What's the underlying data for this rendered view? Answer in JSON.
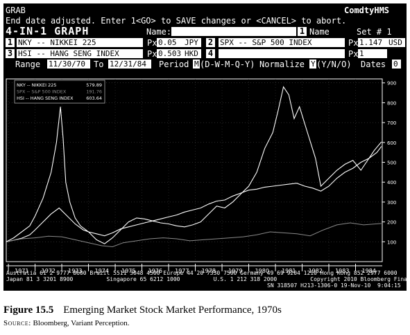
{
  "terminal": {
    "title": "GRAB",
    "brand": "ComdtyHMS",
    "message": "End date adjusted. Enter 1<GO> to SAVE changes or <CANCEL> to abort.",
    "graph_title": "4-IN-1 GRAPH",
    "name_label": "Name:",
    "name_value": "",
    "name_button_num": "1",
    "name_button_label": "Name",
    "set_label": "Set # 1",
    "securities": [
      {
        "num": "1",
        "ticker": "NKY -- NIKKEI 225",
        "px_label": "Px",
        "px_value": "0.05",
        "currency": "JPY"
      },
      {
        "num": "2",
        "ticker": "SPX -- S&P 500 INDEX",
        "px_label": "Px",
        "px_value": "1.147",
        "currency": "USD"
      },
      {
        "num": "3",
        "ticker": "HSI -- HANG SENG INDEX",
        "px_label": "Px",
        "px_value": "0.503",
        "currency": "HKD"
      },
      {
        "num": "4",
        "ticker": "",
        "px_label": "Px",
        "px_value": "1",
        "currency": ""
      }
    ],
    "range_label": "Range",
    "range_start": "11/30/70",
    "range_to": "To",
    "range_end": "12/31/84",
    "period_label": "Period",
    "period_value": "M",
    "period_options": "(D-W-M-Q-Y)",
    "normalize_label": "Normalize",
    "normalize_value": "Y",
    "normalize_options": "(Y/N/O)",
    "dates_label": "Dates",
    "dates_value": "0",
    "footer_lines": [
      "Australia 61 2 9777 8600 Brazil 5511 3048 4500 Europe 44 20 7330 7500 Germany 49 69 9204 1210 Hong Kong 852 2977 6000",
      "Japan 81 3 3201 8900          Singapore 65 6212 1000          U.S. 1 212 318 2000          Copyright 2010 Bloomberg Finance L.P.",
      "SN 318507 H213-1306-0 19-Nov-10  9:04:15"
    ]
  },
  "caption": {
    "figure_label": "Figure 15.5",
    "figure_title": "Emerging Market Stock Market Performance, 1970s",
    "source_label": "Source:",
    "source_text": "Bloomberg, Variant Perception."
  },
  "chart_data": {
    "type": "line",
    "x_ticks": [
      "1971",
      "1972",
      "1973",
      "1974",
      "1975",
      "1976",
      "1977",
      "1978",
      "1979",
      "1980",
      "1981",
      "1982",
      "1983",
      "1984"
    ],
    "xlim": [
      1970.92,
      1985.0
    ],
    "ylim": [
      0,
      920
    ],
    "y_ticks": [
      100,
      200,
      300,
      400,
      500,
      600,
      700,
      800,
      900
    ],
    "legend": {
      "placement": "top-left"
    },
    "series": [
      {
        "name": "NKY -- NIKKEI 225",
        "last": "579.89",
        "color": "#ffffff",
        "x": [
          1970.92,
          1971.2,
          1971.5,
          1971.8,
          1972.0,
          1972.3,
          1972.6,
          1972.9,
          1973.2,
          1973.5,
          1973.8,
          1974.0,
          1974.3,
          1974.6,
          1974.9,
          1975.2,
          1975.5,
          1975.8,
          1976.1,
          1976.4,
          1976.7,
          1977.0,
          1977.3,
          1977.6,
          1977.9,
          1978.2,
          1978.5,
          1978.8,
          1979.1,
          1979.4,
          1979.7,
          1980.0,
          1980.3,
          1980.6,
          1980.9,
          1981.2,
          1981.5,
          1981.8,
          1982.1,
          1982.4,
          1982.7,
          1983.0,
          1983.3,
          1983.6,
          1983.9,
          1984.2,
          1984.5,
          1984.8,
          1984.97
        ],
        "y": [
          100,
          108,
          118,
          135,
          160,
          200,
          240,
          270,
          230,
          190,
          160,
          150,
          140,
          130,
          145,
          165,
          175,
          185,
          195,
          205,
          215,
          225,
          235,
          250,
          260,
          270,
          290,
          305,
          310,
          330,
          345,
          360,
          365,
          375,
          380,
          385,
          390,
          395,
          380,
          370,
          355,
          380,
          420,
          450,
          470,
          500,
          520,
          550,
          580
        ]
      },
      {
        "name": "SPX -- S&P 500 INDEX",
        "last": "191.76",
        "color": "#8a8a8a",
        "x": [
          1970.92,
          1971.5,
          1972.0,
          1972.5,
          1973.0,
          1973.5,
          1974.0,
          1974.5,
          1974.9,
          1975.3,
          1975.8,
          1976.3,
          1976.8,
          1977.3,
          1977.8,
          1978.3,
          1978.8,
          1979.3,
          1979.8,
          1980.3,
          1980.8,
          1981.3,
          1981.8,
          1982.3,
          1982.8,
          1983.3,
          1983.8,
          1984.3,
          1984.97
        ],
        "y": [
          100,
          115,
          120,
          128,
          125,
          110,
          95,
          80,
          75,
          95,
          105,
          115,
          120,
          115,
          105,
          110,
          115,
          120,
          125,
          135,
          150,
          145,
          140,
          130,
          160,
          185,
          195,
          185,
          192
        ]
      },
      {
        "name": "HSI -- HANG SENG INDEX",
        "last": "603.64",
        "color": "#ffffff",
        "x": [
          1970.92,
          1971.2,
          1971.5,
          1971.8,
          1972.0,
          1972.3,
          1972.6,
          1972.8,
          1972.95,
          1973.05,
          1973.15,
          1973.3,
          1973.5,
          1973.7,
          1974.0,
          1974.3,
          1974.6,
          1974.9,
          1975.2,
          1975.5,
          1975.8,
          1976.1,
          1976.4,
          1976.7,
          1977.0,
          1977.3,
          1977.6,
          1977.9,
          1978.2,
          1978.5,
          1978.8,
          1979.1,
          1979.4,
          1979.7,
          1980.0,
          1980.3,
          1980.6,
          1980.9,
          1981.1,
          1981.3,
          1981.5,
          1981.7,
          1981.9,
          1982.2,
          1982.5,
          1982.7,
          1983.0,
          1983.3,
          1983.6,
          1983.9,
          1984.2,
          1984.5,
          1984.7,
          1984.97
        ],
        "y": [
          100,
          120,
          150,
          180,
          230,
          320,
          450,
          600,
          780,
          620,
          400,
          300,
          220,
          180,
          150,
          110,
          90,
          120,
          160,
          200,
          220,
          215,
          205,
          195,
          190,
          180,
          175,
          185,
          200,
          240,
          280,
          270,
          300,
          340,
          380,
          450,
          570,
          650,
          760,
          880,
          840,
          720,
          780,
          650,
          520,
          380,
          420,
          460,
          490,
          510,
          460,
          520,
          560,
          603
        ]
      }
    ]
  }
}
